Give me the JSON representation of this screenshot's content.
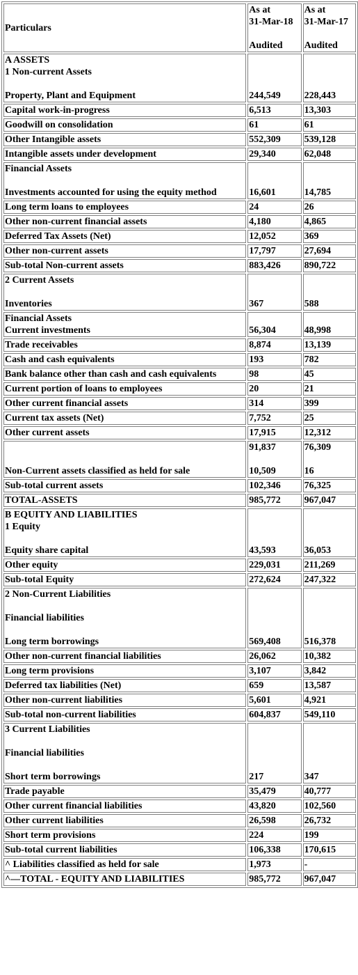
{
  "header": {
    "particulars": "Particulars",
    "col1": [
      "As at",
      "31-Mar-18",
      "",
      "Audited"
    ],
    "col2": [
      "As at",
      "31-Mar-17",
      "",
      "Audited"
    ]
  },
  "rows": [
    {
      "lines": [
        "A ASSETS",
        "1 Non-current Assets",
        "",
        "Property, Plant and Equipment"
      ],
      "v1": "244,549",
      "v2": "228,443"
    },
    {
      "lines": [
        "Capital work-in-progress"
      ],
      "v1": "6,513",
      "v2": "13,303"
    },
    {
      "lines": [
        "Goodwill on consolidation"
      ],
      "v1": "61",
      "v2": "61"
    },
    {
      "lines": [
        "Other Intangible assets"
      ],
      "v1": "552,309",
      "v2": "539,128"
    },
    {
      "lines": [
        "Intangible assets under development"
      ],
      "v1": "29,340",
      "v2": "62,048"
    },
    {
      "lines": [
        "Financial Assets",
        "",
        "Investments accounted for using the equity method"
      ],
      "v1": "16,601",
      "v2": "14,785"
    },
    {
      "lines": [
        "Long term loans to employees"
      ],
      "v1": "24",
      "v2": "26"
    },
    {
      "lines": [
        "Other non-current financial assets"
      ],
      "v1": "4,180",
      "v2": "4,865"
    },
    {
      "lines": [
        "Deferred Tax Assets (Net)"
      ],
      "v1": "12,052",
      "v2": "369"
    },
    {
      "lines": [
        "Other non-current assets"
      ],
      "v1": "17,797",
      "v2": "27,694"
    },
    {
      "lines": [
        "Sub-total Non-current assets"
      ],
      "v1": "883,426",
      "v2": "890,722"
    },
    {
      "lines": [
        "2 Current Assets",
        "",
        "Inventories"
      ],
      "v1": "367",
      "v2": "588"
    },
    {
      "lines": [
        "Financial Assets",
        "Current investments"
      ],
      "v1": "56,304",
      "v2": "48,998"
    },
    {
      "lines": [
        "Trade receivables"
      ],
      "v1": "8,874",
      "v2": "13,139"
    },
    {
      "lines": [
        "Cash and cash equivalents"
      ],
      "v1": "193",
      "v2": "782"
    },
    {
      "lines": [
        "Bank balance other than cash and cash equivalents"
      ],
      "v1": "98",
      "v2": "45"
    },
    {
      "lines": [
        "Current portion of loans to employees"
      ],
      "v1": "20",
      "v2": "21"
    },
    {
      "lines": [
        "Other current financial assets"
      ],
      "v1": "314",
      "v2": "399"
    },
    {
      "lines": [
        "Current tax assets (Net)"
      ],
      "v1": "7,752",
      "v2": "25"
    },
    {
      "lines": [
        "Other current assets"
      ],
      "v1": "17,915",
      "v2": "12,312"
    },
    {
      "lines": [
        "",
        "",
        "Non-Current assets classified as held for sale"
      ],
      "v1_top": "91,837",
      "v2_top": "76,309",
      "v1": "10,509",
      "v2": "16"
    },
    {
      "lines": [
        "Sub-total current assets"
      ],
      "v1": "102,346",
      "v2": "76,325"
    },
    {
      "lines": [
        "TOTAL-ASSETS"
      ],
      "v1": "985,772",
      "v2": "967,047"
    },
    {
      "lines": [
        "B EQUITY AND LIABILITIES",
        "1 Equity",
        "",
        "Equity share capital"
      ],
      "v1": "43,593",
      "v2": "36,053"
    },
    {
      "lines": [
        "Other equity"
      ],
      "v1": "229,031",
      "v2": "211,269"
    },
    {
      "lines": [
        "Sub-total Equity"
      ],
      "v1": "272,624",
      "v2": "247,322"
    },
    {
      "lines": [
        "2 Non-Current Liabilities",
        "",
        "Financial liabilities",
        "",
        "Long term borrowings"
      ],
      "v1": "569,408",
      "v2": "516,378"
    },
    {
      "lines": [
        "Other non-current financial liabilities"
      ],
      "v1": "26,062",
      "v2": "10,382"
    },
    {
      "lines": [
        "Long term provisions"
      ],
      "v1": "3,107",
      "v2": "3,842"
    },
    {
      "lines": [
        "Deferred tax liabilities (Net)"
      ],
      "v1": "659",
      "v2": "13,587"
    },
    {
      "lines": [
        "Other non-current liabilities"
      ],
      "v1": "5,601",
      "v2": "4,921"
    },
    {
      "lines": [
        "Sub-total non-current liabilities"
      ],
      "v1": "604,837",
      "v2": "549,110"
    },
    {
      "lines": [
        "3 Current Liabilities",
        "",
        "Financial liabilities",
        "",
        "Short term borrowings"
      ],
      "v1": "217",
      "v2": "347"
    },
    {
      "lines": [
        "Trade payable"
      ],
      "v1": "35,479",
      "v2": "40,777"
    },
    {
      "lines": [
        "Other current financial liabilities"
      ],
      "v1": "43,820",
      "v2": "102,560"
    },
    {
      "lines": [
        "Other current liabilities"
      ],
      "v1": "26,598",
      "v2": "26,732"
    },
    {
      "lines": [
        "Short term provisions"
      ],
      "v1": "224",
      "v2": "199"
    },
    {
      "lines": [
        "Sub-total current liabilities"
      ],
      "v1": "106,338",
      "v2": "170,615"
    },
    {
      "lines": [
        "^ Liabilities classified as held for sale"
      ],
      "v1": "1,973",
      "v2": "-"
    },
    {
      "lines": [
        "^—TOTAL - EQUITY AND LIABILITIES"
      ],
      "v1": "985,772",
      "v2": "967,047"
    }
  ]
}
